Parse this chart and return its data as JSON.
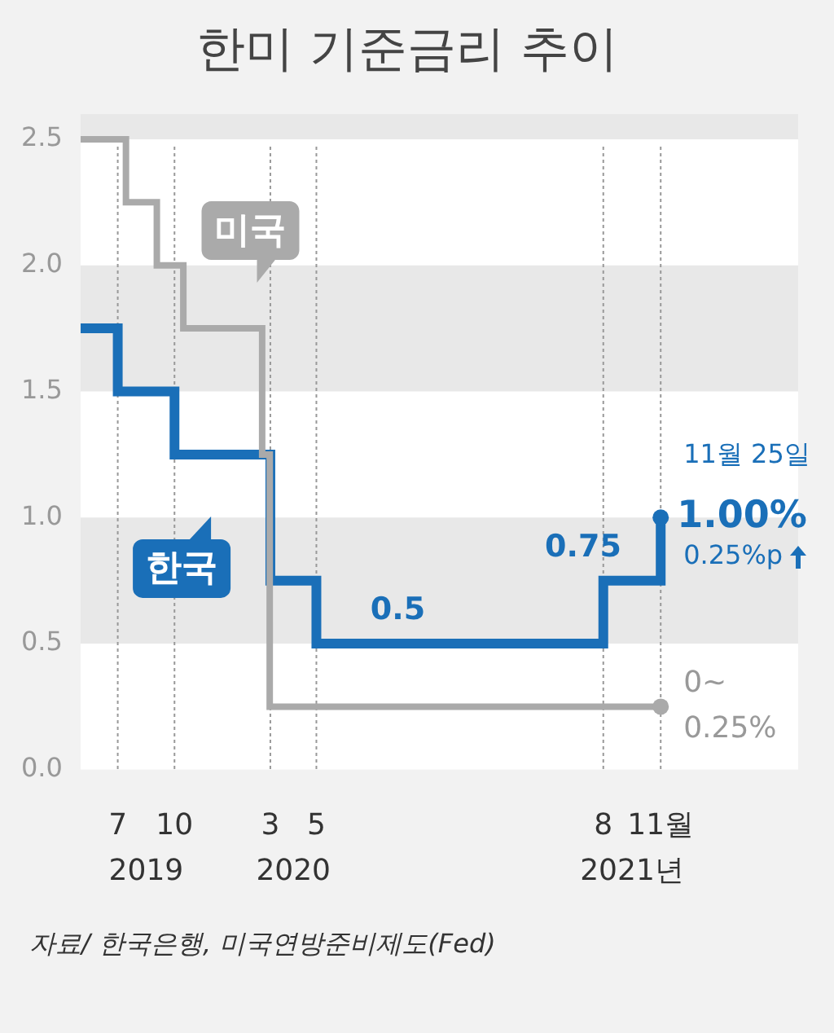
{
  "chart_data": {
    "type": "step",
    "title": "한미 기준금리 추이",
    "xlim": [
      "2019-05-20",
      "2022-07-01"
    ],
    "xticks": [
      {
        "value": "2019-07-18",
        "label": "7"
      },
      {
        "value": "2019-10-16",
        "label": "10"
      },
      {
        "value": "2020-03-16",
        "label": "3"
      },
      {
        "value": "2020-05-28",
        "label": "5"
      },
      {
        "value": "2021-08-26",
        "label": "8"
      },
      {
        "value": "2021-11-25",
        "label": "11월"
      }
    ],
    "ylim": [
      0,
      2.6
    ],
    "yticks": [
      {
        "value": 0,
        "label": "0.0"
      },
      {
        "value": 0.5,
        "label": "0.5"
      },
      {
        "value": 1,
        "label": "1.0"
      },
      {
        "value": 1.5,
        "label": "1.5"
      },
      {
        "value": 2,
        "label": "2.0"
      },
      {
        "value": 2.5,
        "label": "2.5"
      }
    ],
    "grid": true,
    "series": [
      {
        "name": "미국",
        "color": "#aaaaaa",
        "x": [
          "2019-05-20",
          "2019-07-31",
          "2019-09-18",
          "2019-10-30",
          "2020-03-03",
          "2020-03-15",
          "2021-11-25"
        ],
        "values": [
          2.5,
          2.25,
          2.0,
          1.75,
          1.25,
          0.25,
          0.25
        ]
      },
      {
        "name": "한국",
        "color": "#1a6fb8",
        "x": [
          "2019-05-20",
          "2019-07-18",
          "2019-10-16",
          "2020-03-16",
          "2020-05-28",
          "2021-08-26",
          "2021-11-25"
        ],
        "values": [
          1.75,
          1.5,
          1.25,
          0.75,
          0.5,
          0.75,
          1.0
        ],
        "value_labels": [
          null,
          null,
          null,
          null,
          "0.5",
          "0.75",
          "1.00%"
        ]
      }
    ],
    "annotations": [
      "2019",
      "2020",
      "2021년",
      {
        "text": "11월 25일",
        "x": "2021-11-25",
        "y": 1.0
      },
      {
        "text": "0.25%p",
        "x": "2021-11-25",
        "y": 1.0
      },
      {
        "text": "0~",
        "x": "2021-11-25",
        "y": 0.25
      },
      {
        "text": "0.25%",
        "x": "2021-11-25",
        "y": 0.25
      },
      "자료/ 한국은행, 미국연방준비제도(Fed)"
    ]
  }
}
